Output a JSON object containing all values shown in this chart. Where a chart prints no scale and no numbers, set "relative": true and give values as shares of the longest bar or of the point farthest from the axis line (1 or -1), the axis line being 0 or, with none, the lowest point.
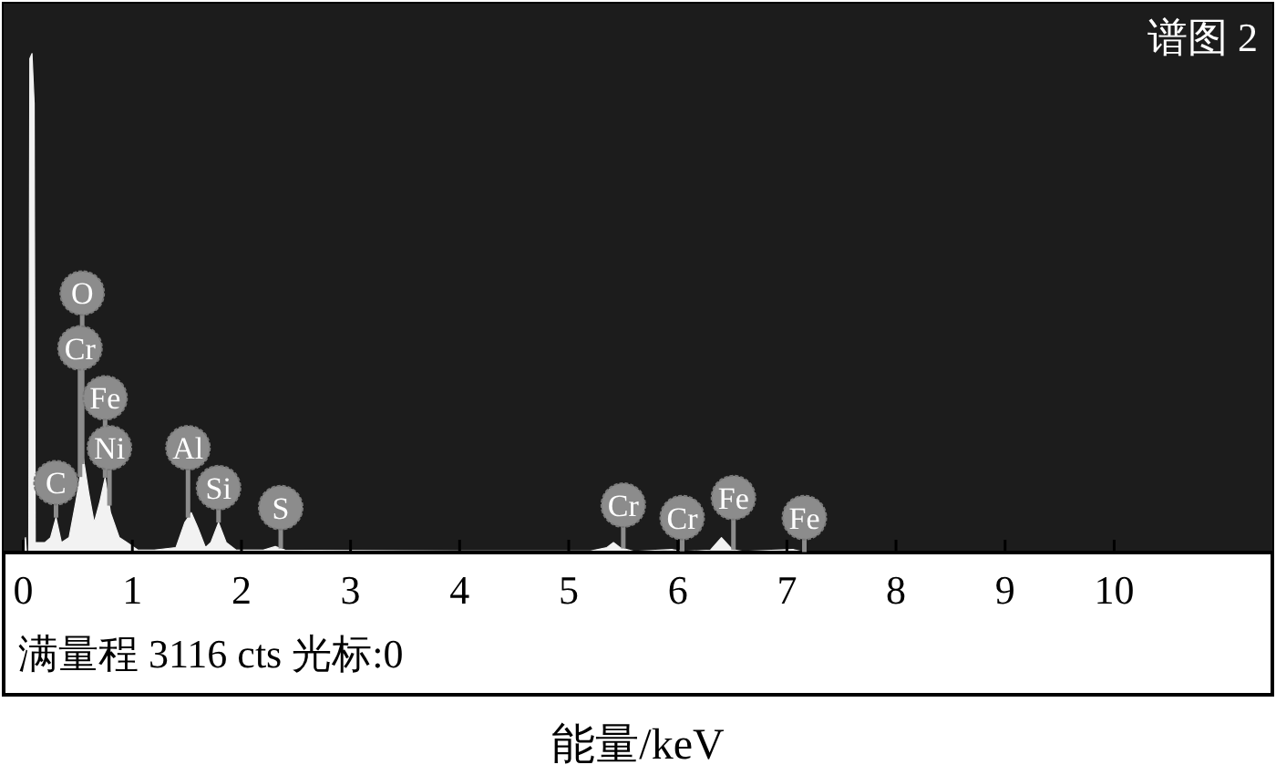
{
  "chart_data": {
    "type": "area",
    "relative": true,
    "title": "谱图 2",
    "xlabel": "能量/keV",
    "xlim": [
      -0.18,
      11.45
    ],
    "xticks": [
      0,
      1,
      2,
      3,
      4,
      5,
      6,
      7,
      8,
      9,
      10
    ],
    "grid": false,
    "series": [
      {
        "color": "#f2f2f2",
        "x": [
          -0.1,
          0.0,
          0.02,
          0.03,
          0.05,
          0.06,
          0.08,
          0.1,
          0.11,
          0.2,
          0.25,
          0.3,
          0.35,
          0.42,
          0.48,
          0.55,
          0.6,
          0.65,
          0.7,
          0.75,
          0.8,
          0.88,
          0.95,
          1.05,
          1.2,
          1.4,
          1.48,
          1.54,
          1.6,
          1.67,
          1.72,
          1.79,
          1.86,
          1.95,
          2.2,
          2.31,
          2.4,
          3.0,
          4.0,
          5.2,
          5.35,
          5.41,
          5.47,
          5.6,
          5.95,
          6.05,
          6.3,
          6.4,
          6.5,
          6.6,
          7.06,
          7.15,
          8.0,
          11.0
        ],
        "values": [
          0,
          0,
          0.03,
          0,
          0,
          0.99,
          1.0,
          0.9,
          0.02,
          0.02,
          0.03,
          0.07,
          0.02,
          0.03,
          0.1,
          0.19,
          0.12,
          0.06,
          0.1,
          0.15,
          0.08,
          0.03,
          0.02,
          0.005,
          0.005,
          0.01,
          0.06,
          0.08,
          0.05,
          0.01,
          0.02,
          0.06,
          0.02,
          0.005,
          0.005,
          0.012,
          0.005,
          0.004,
          0.003,
          0.003,
          0.01,
          0.02,
          0.01,
          0.002,
          0.006,
          0.002,
          0.005,
          0.03,
          0.006,
          0.002,
          0.006,
          0.001,
          0.001,
          0.001
        ]
      }
    ],
    "annotations": [
      {
        "text": "O",
        "x": 0.54,
        "y": 0.52
      },
      {
        "text": "Cr",
        "x": 0.52,
        "y": 0.41
      },
      {
        "text": "Fe",
        "x": 0.75,
        "y": 0.31
      },
      {
        "text": "Ni",
        "x": 0.79,
        "y": 0.21
      },
      {
        "text": "C",
        "x": 0.3,
        "y": 0.14
      },
      {
        "text": "Al",
        "x": 1.51,
        "y": 0.21
      },
      {
        "text": "Si",
        "x": 1.79,
        "y": 0.13
      },
      {
        "text": "S",
        "x": 2.36,
        "y": 0.09
      },
      {
        "text": "Cr",
        "x": 5.5,
        "y": 0.095
      },
      {
        "text": "Cr",
        "x": 6.04,
        "y": 0.07
      },
      {
        "text": "Fe",
        "x": 6.51,
        "y": 0.11
      },
      {
        "text": "Fe",
        "x": 7.16,
        "y": 0.07
      },
      "满量程 3116 cts 光标:0"
    ]
  }
}
